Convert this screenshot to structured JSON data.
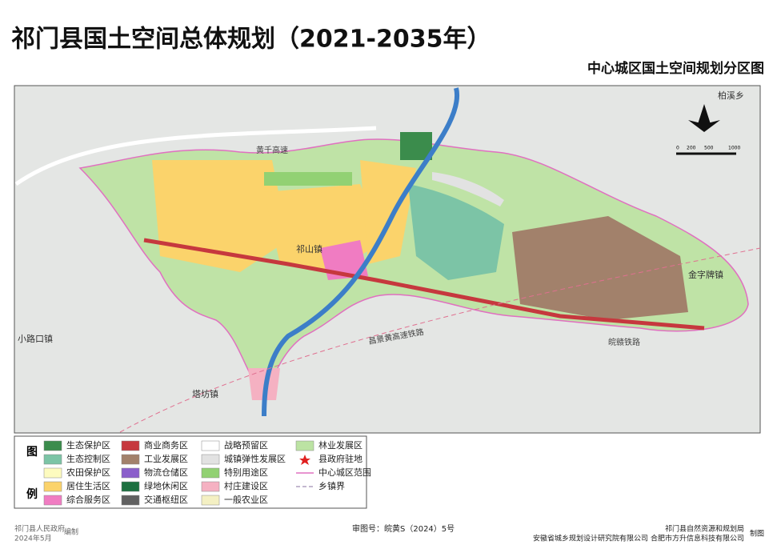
{
  "header": {
    "title": "祁门县国土空间总体规划（2021-2035年）",
    "subtitle": "中心城区国土空间规划分区图"
  },
  "map": {
    "labels": [
      "柏溪乡",
      "黄千高速",
      "祁山镇",
      "金字牌镇",
      "小路口镇",
      "塔坊镇",
      "皖赣铁路",
      "昌景黄高速铁路"
    ],
    "scale": [
      "0",
      "200",
      "500",
      "1000"
    ]
  },
  "legend": {
    "heading": [
      "图",
      "例"
    ],
    "columns": [
      [
        {
          "name": "生态保护区",
          "color": "#3b8c4c",
          "symbol": "fill"
        },
        {
          "name": "生态控制区",
          "color": "#7cc4a6",
          "symbol": "fill"
        },
        {
          "name": "农田保护区",
          "color": "#fdfbbf",
          "symbol": "fill"
        },
        {
          "name": "居住生活区",
          "color": "#fbd36b",
          "symbol": "fill"
        },
        {
          "name": "综合服务区",
          "color": "#f07cc2",
          "symbol": "fill"
        }
      ],
      [
        {
          "name": "商业商务区",
          "color": "#c6383e",
          "symbol": "fill"
        },
        {
          "name": "工业发展区",
          "color": "#a2816b",
          "symbol": "fill"
        },
        {
          "name": "物流仓储区",
          "color": "#8b5fcb",
          "symbol": "fill"
        },
        {
          "name": "绿地休闲区",
          "color": "#1c7040",
          "symbol": "fill"
        },
        {
          "name": "交通枢纽区",
          "color": "#606060",
          "symbol": "fill"
        }
      ],
      [
        {
          "name": "战略预留区",
          "color": "#ffffff",
          "symbol": "fill"
        },
        {
          "name": "城镇弹性发展区",
          "color": "#e2e2e2",
          "symbol": "fill"
        },
        {
          "name": "特别用途区",
          "color": "#92d173",
          "symbol": "fill"
        },
        {
          "name": "村庄建设区",
          "color": "#f5b1c2",
          "symbol": "fill"
        },
        {
          "name": "一般农业区",
          "color": "#f4f0c3",
          "symbol": "fill"
        }
      ],
      [
        {
          "name": "林业发展区",
          "color": "#bce3a3",
          "symbol": "fill"
        },
        {
          "name": "县政府驻地",
          "color": "#e02020",
          "symbol": "star"
        },
        {
          "name": "中心城区范围",
          "color": "#e070c0",
          "symbol": "line"
        },
        {
          "name": "乡镇界",
          "color": "#b0a0c0",
          "symbol": "dash"
        }
      ]
    ]
  },
  "footer": {
    "left": [
      "祁门县人民政府",
      "2024年5月",
      "编制"
    ],
    "center": "审图号：皖黄S（2024）5号",
    "right": [
      "祁门县自然资源和规划局",
      "安徽省城乡规划设计研究院有限公司",
      "合肥市方升信息科技有限公司",
      "制图"
    ]
  }
}
